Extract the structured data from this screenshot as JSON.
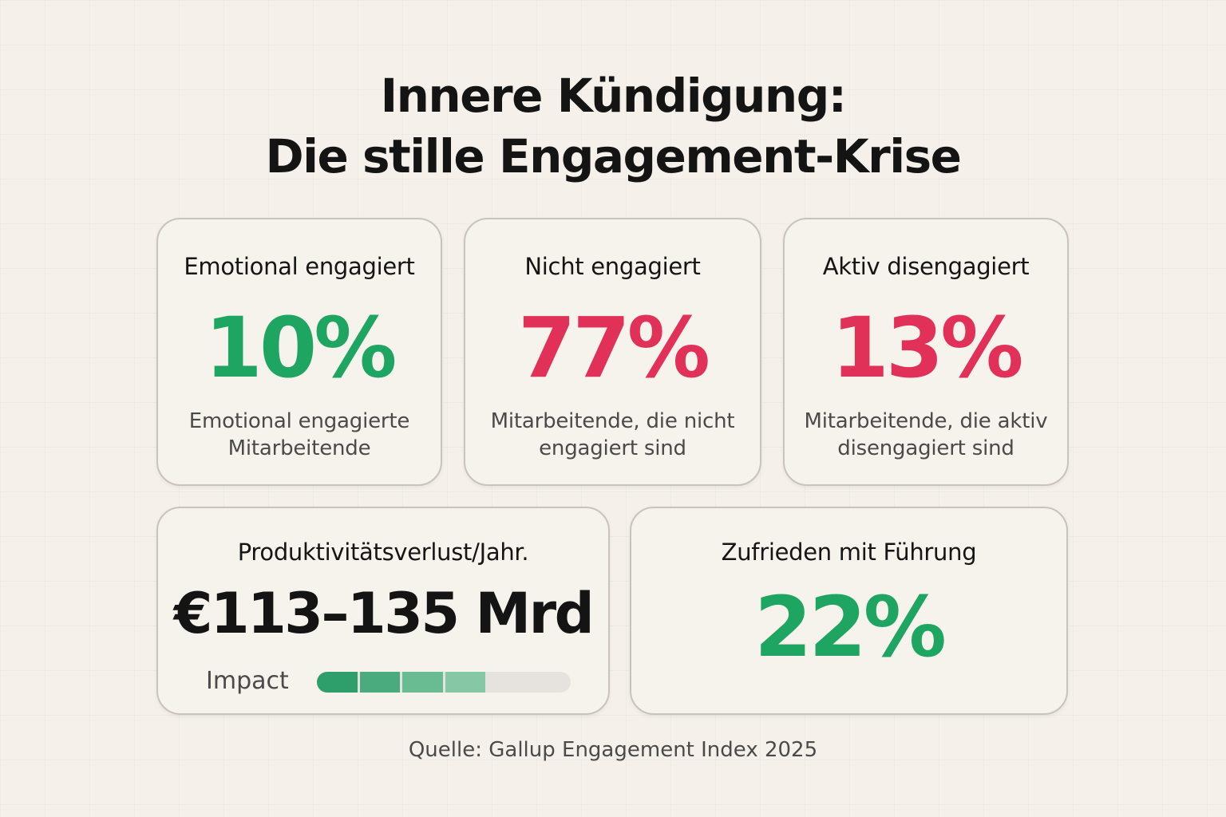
{
  "title": {
    "line1": "Innere Kündigung:",
    "line2": "Die stille Engagement-Krise"
  },
  "cards": [
    {
      "title": "Emotional engagiert",
      "value": "10%",
      "color": "#1fa562",
      "description": [
        "Emotional engagierte",
        "Mitarbeitende"
      ]
    },
    {
      "title": "Nicht engagiert",
      "value": "77%",
      "color": "#e23158",
      "description": [
        "Mitarbeitende, die nicht",
        "engagiert sind"
      ]
    },
    {
      "title": "Aktiv disengagiert",
      "value": "13%",
      "color": "#e23158",
      "description": [
        "Mitarbeitende, die aktiv",
        "disengagiert sind"
      ]
    }
  ],
  "productivity": {
    "title": "Produktivitätsverlust/Jahr.",
    "value": "€113–135 Mrd",
    "impact_label": "Impact",
    "impact_filled_segments": 4,
    "impact_total_segments": 6,
    "impact_colors": [
      "#2e9e6a",
      "#4aac7e",
      "#69bb92",
      "#86c8a6"
    ]
  },
  "leadership": {
    "title": "Zufrieden mit Führung",
    "value": "22%",
    "color": "#1fa562"
  },
  "source": "Quelle: Gallup Engagement Index 2025"
}
